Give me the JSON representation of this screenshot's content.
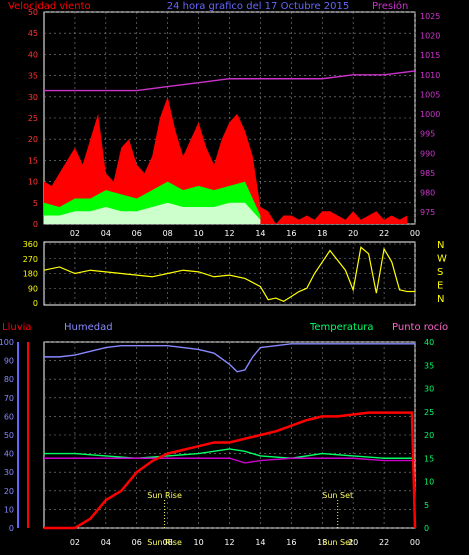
{
  "colors": {
    "wind": "#ff0000",
    "gust_fill": "#00ff00",
    "avg_fill": "#ccffcc",
    "pressure": "#cc33cc",
    "direction": "#ffff00",
    "humidity": "#8888ff",
    "temperature": "#00ff66",
    "dewpoint": "#cc00cc",
    "rain": "#ff0000",
    "sun": "#ffff66",
    "grid": "#8a8a8a",
    "frame": "#ffffff"
  },
  "header": {
    "left": "Velocidad viento",
    "center": "24 hora grafico del 17 Octubre 2015",
    "right": "Presión"
  },
  "direction_letters": [
    "N",
    "W",
    "S",
    "E",
    "N"
  ],
  "bottom_labels": {
    "rain": "Lluvia",
    "humidity": "Humedad",
    "temperature": "Temperatura",
    "dewpoint": "Punto rocío",
    "sunrise": "Sun Rise",
    "sunset": "Sun Set",
    "sunrise_axis": "Sun Rise",
    "sunset_axis": "Sun Set"
  },
  "x_ticks": [
    "02",
    "04",
    "06",
    "08",
    "10",
    "12",
    "14",
    "16",
    "18",
    "20",
    "22",
    "00"
  ],
  "chart_data": [
    {
      "type": "area",
      "title": "24 hora grafico del 17 Octubre 2015",
      "left_axis": "Velocidad viento",
      "right_axis": "Presión",
      "left_ticks": [
        0,
        5,
        10,
        15,
        20,
        25,
        30,
        35,
        40,
        45,
        50
      ],
      "right_ticks": [
        975,
        980,
        985,
        990,
        995,
        1000,
        1005,
        1010,
        1015,
        1020,
        1025
      ],
      "ylim_left": [
        0,
        50
      ],
      "ylim_right": [
        972,
        1026
      ],
      "x_range_hours": [
        0,
        24
      ],
      "wind_speed": {
        "x": [
          0,
          0.5,
          1,
          1.5,
          2,
          2.5,
          3,
          3.5,
          4,
          4.5,
          5,
          5.5,
          6,
          6.5,
          7,
          7.5,
          8,
          8.5,
          9,
          9.5,
          10,
          10.5,
          11,
          11.5,
          12,
          12.5,
          13,
          13.5,
          14,
          14.5,
          15,
          15.5,
          16,
          16.5,
          17,
          17.5,
          18,
          18.5,
          19,
          19.5,
          20,
          20.5,
          21,
          21.5,
          22,
          22.5,
          23,
          23.5
        ],
        "y": [
          10,
          9,
          12,
          15,
          18,
          14,
          20,
          26,
          12,
          10,
          18,
          20,
          14,
          12,
          16,
          25,
          30,
          22,
          16,
          20,
          24,
          18,
          14,
          20,
          24,
          26,
          22,
          16,
          4,
          3,
          0,
          2,
          2,
          1,
          2,
          1,
          3,
          3,
          2,
          1,
          3,
          1,
          2,
          3,
          1,
          2,
          1,
          2
        ]
      },
      "wind_gust": {
        "x": [
          0,
          1,
          2,
          3,
          4,
          5,
          6,
          7,
          8,
          9,
          10,
          11,
          12,
          13,
          14
        ],
        "y": [
          5,
          4,
          6,
          6,
          8,
          7,
          6,
          8,
          10,
          8,
          9,
          8,
          9,
          10,
          2
        ]
      },
      "wind_avg": {
        "x": [
          0,
          1,
          2,
          3,
          4,
          5,
          6,
          7,
          8,
          9,
          10,
          11,
          12,
          13,
          14
        ],
        "y": [
          2,
          2,
          3,
          3,
          4,
          3,
          3,
          4,
          5,
          4,
          4,
          4,
          5,
          5,
          1
        ]
      },
      "pressure": {
        "x": [
          0,
          2,
          4,
          6,
          8,
          10,
          12,
          14,
          16,
          18,
          20,
          22,
          24
        ],
        "y": [
          1006,
          1006,
          1006,
          1006,
          1007,
          1008,
          1009,
          1009,
          1009,
          1009,
          1010,
          1010,
          1011
        ]
      }
    },
    {
      "type": "line",
      "title": "",
      "y_ticks": [
        0,
        90,
        180,
        270,
        360
      ],
      "ylim": [
        0,
        360
      ],
      "x_range_hours": [
        0,
        24
      ],
      "direction": {
        "x": [
          0,
          1,
          2,
          3,
          4,
          5,
          6,
          7,
          8,
          9,
          10,
          11,
          12,
          13,
          14,
          14.5,
          15,
          15.5,
          16,
          16.5,
          17,
          17.5,
          18,
          18.5,
          19,
          19.5,
          20,
          20.5,
          21,
          21.5,
          22,
          22.5,
          23,
          23.5,
          24
        ],
        "y": [
          200,
          220,
          180,
          200,
          190,
          180,
          170,
          160,
          180,
          200,
          190,
          160,
          170,
          150,
          100,
          20,
          30,
          10,
          40,
          70,
          90,
          180,
          250,
          320,
          260,
          200,
          80,
          340,
          300,
          60,
          330,
          250,
          80,
          70,
          70
        ]
      }
    },
    {
      "type": "line",
      "title": "",
      "left_axis": "Humedad",
      "right_axis": "Temperatura",
      "left_ticks": [
        0,
        10,
        20,
        30,
        40,
        50,
        60,
        70,
        80,
        90,
        100
      ],
      "right_ticks": [
        0,
        5,
        10,
        15,
        20,
        25,
        30,
        35,
        40
      ],
      "ylim_left": [
        0,
        100
      ],
      "ylim_right": [
        0,
        40
      ],
      "x_range_hours": [
        0,
        24
      ],
      "humidity": {
        "x": [
          0,
          1,
          2,
          3,
          4,
          5,
          6,
          7,
          8,
          9,
          10,
          11,
          12,
          12.5,
          13,
          13.5,
          14,
          15,
          16,
          18,
          20,
          22,
          24
        ],
        "y": [
          92,
          92,
          93,
          95,
          97,
          98,
          98,
          98,
          98,
          97,
          96,
          94,
          88,
          84,
          85,
          92,
          97,
          98,
          99,
          99,
          99,
          99,
          99
        ]
      },
      "temperature": {
        "x": [
          0,
          2,
          4,
          6,
          8,
          10,
          12,
          13,
          14,
          16,
          18,
          20,
          22,
          24
        ],
        "y": [
          16,
          16,
          15.5,
          15,
          15.5,
          16,
          17,
          16.5,
          15.5,
          15,
          16,
          15.5,
          15,
          15
        ]
      },
      "dewpoint": {
        "x": [
          0,
          2,
          4,
          6,
          8,
          10,
          12,
          13,
          14,
          16,
          18,
          20,
          22,
          24
        ],
        "y": [
          15,
          15,
          15,
          15,
          15,
          15,
          15,
          14,
          14.5,
          15,
          15,
          15,
          14.5,
          14.5
        ]
      },
      "rain": {
        "x": [
          0,
          2,
          3,
          4,
          5,
          6,
          7,
          8,
          9,
          10,
          11,
          12,
          13,
          14,
          15,
          16,
          17,
          18,
          19,
          20,
          21,
          22,
          23,
          23.8,
          24
        ],
        "y": [
          0,
          0,
          5,
          15,
          20,
          30,
          36,
          40,
          42,
          44,
          46,
          46,
          48,
          50,
          52,
          55,
          58,
          60,
          60,
          61,
          62,
          62,
          62,
          62,
          0
        ]
      },
      "sunrise_hour": 7.8,
      "sunset_hour": 19.0
    }
  ]
}
